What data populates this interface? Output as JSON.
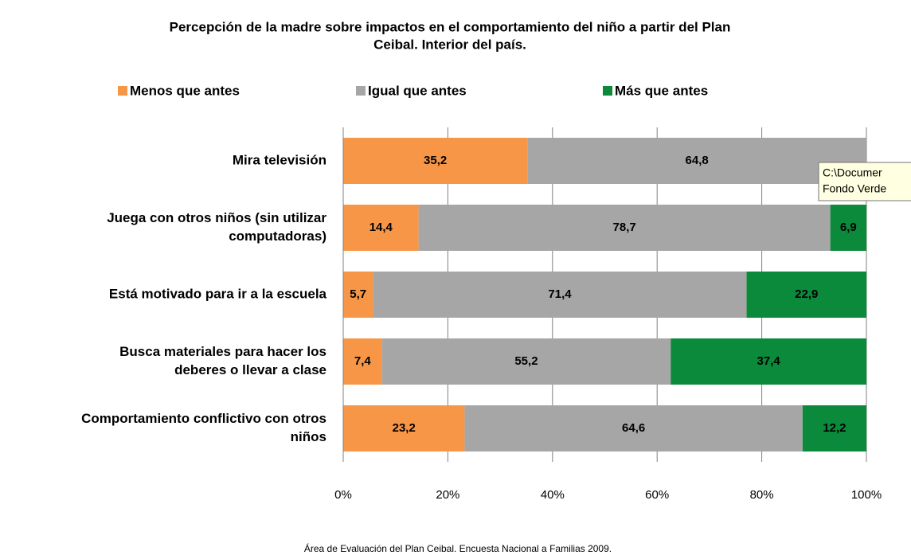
{
  "chart_data": {
    "type": "stacked-bar-horizontal",
    "title": [
      "Percepción de la madre sobre impactos en el comportamiento del niño a partir del Plan",
      "Ceibal. Interior del país."
    ],
    "categories": [
      [
        "Mira televisión"
      ],
      [
        "Juega con otros niños (sin utilizar",
        "computadoras)"
      ],
      [
        "Está motivado para ir a la escuela"
      ],
      [
        "Busca materiales para hacer los",
        "deberes o llevar a clase"
      ],
      [
        "Comportamiento conflictivo con otros",
        "niños"
      ]
    ],
    "series": [
      {
        "name": "Menos que antes",
        "color": "#f79646",
        "values": [
          35.2,
          14.4,
          5.7,
          7.4,
          23.2
        ],
        "value_labels": [
          "35,2",
          "14,4",
          "5,7",
          "7,4",
          "23,2"
        ]
      },
      {
        "name": "Igual que antes",
        "color": "#a6a6a6",
        "values": [
          64.8,
          78.7,
          71.4,
          55.2,
          64.6
        ],
        "value_labels": [
          "64,8",
          "78,7",
          "71,4",
          "55,2",
          "64,6"
        ]
      },
      {
        "name": "Más que antes",
        "color": "#0a8a3a",
        "values": [
          null,
          6.9,
          22.9,
          37.4,
          12.2
        ],
        "value_labels": [
          null,
          "6,9",
          "22,9",
          "37,4",
          "12,2"
        ]
      }
    ],
    "xlim": [
      0,
      100
    ],
    "xticks": [
      {
        "value": 0,
        "label": "0%"
      },
      {
        "value": 20,
        "label": "20%"
      },
      {
        "value": 40,
        "label": "40%"
      },
      {
        "value": 60,
        "label": "60%"
      },
      {
        "value": 80,
        "label": "80%"
      },
      {
        "value": 100,
        "label": "100%"
      }
    ],
    "grid": true,
    "legend": "top",
    "source": "Área de Evaluación del Plan Ceibal. Encuesta Nacional a Familias 2009.",
    "tooltip": [
      "C:\\Documer",
      "Fondo Verde"
    ]
  }
}
